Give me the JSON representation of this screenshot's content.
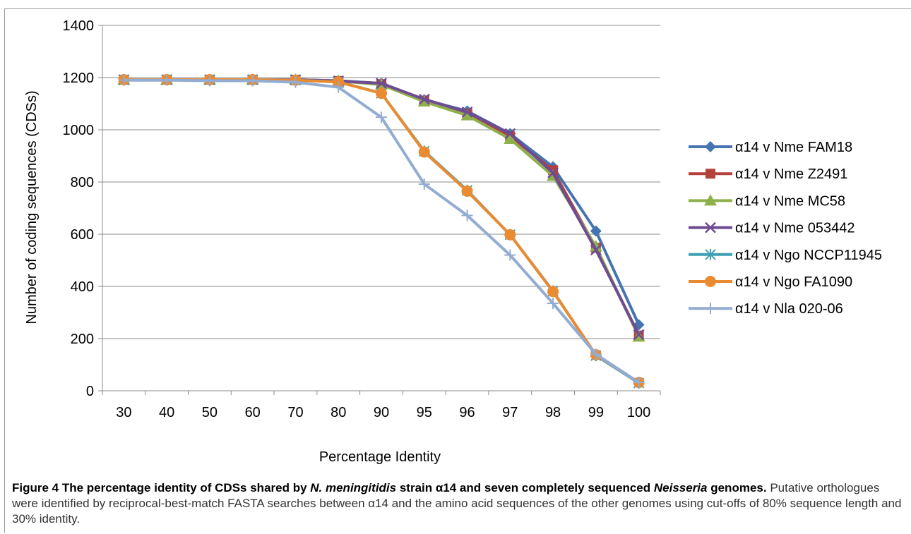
{
  "chart_data": {
    "type": "line",
    "title": "",
    "xlabel": "Percentage Identity",
    "ylabel": "Number of coding sequences (CDSs)",
    "ylim": [
      0,
      1400
    ],
    "yticks": [
      "0",
      "200",
      "400",
      "600",
      "800",
      "1000",
      "1200",
      "1400"
    ],
    "categories": [
      "30",
      "40",
      "50",
      "60",
      "70",
      "80",
      "90",
      "95",
      "96",
      "97",
      "98",
      "99",
      "100"
    ],
    "grid": "horizontal",
    "legend_position": "right",
    "series": [
      {
        "name": "α14 v Nme FAM18",
        "color": "#4674b0",
        "marker": "diamond",
        "values": [
          1192,
          1192,
          1192,
          1192,
          1192,
          1188,
          1178,
          1115,
          1072,
          985,
          858,
          612,
          253
        ]
      },
      {
        "name": "α14 v Nme Z2491",
        "color": "#b5413d",
        "marker": "square",
        "values": [
          1192,
          1192,
          1192,
          1192,
          1192,
          1187,
          1175,
          1112,
          1062,
          975,
          845,
          548,
          212
        ]
      },
      {
        "name": "α14 v Nme MC58",
        "color": "#8eb04a",
        "marker": "triangle",
        "values": [
          1192,
          1192,
          1192,
          1192,
          1192,
          1187,
          1173,
          1108,
          1055,
          965,
          823,
          553,
          207
        ]
      },
      {
        "name": "α14 v Nme 053442",
        "color": "#6e4b93",
        "marker": "x",
        "values": [
          1192,
          1192,
          1192,
          1192,
          1192,
          1187,
          1178,
          1117,
          1068,
          985,
          835,
          540,
          215
        ]
      },
      {
        "name": "α14 v Ngo NCCP11945",
        "color": "#3ea0b4",
        "marker": "asterisk",
        "values": [
          1192,
          1192,
          1192,
          1192,
          1190,
          1184,
          1140,
          918,
          768,
          598,
          382,
          135,
          30
        ]
      },
      {
        "name": "α14 v Ngo FA1090",
        "color": "#ea8b32",
        "marker": "circle",
        "values": [
          1192,
          1192,
          1192,
          1192,
          1190,
          1183,
          1140,
          915,
          765,
          598,
          380,
          138,
          32
        ]
      },
      {
        "name": "α14 v Nla 020-06",
        "color": "#93acd2",
        "marker": "plus",
        "values": [
          1190,
          1190,
          1188,
          1188,
          1182,
          1163,
          1048,
          792,
          672,
          520,
          335,
          140,
          32
        ]
      }
    ]
  },
  "caption": {
    "title_parts": [
      {
        "text": "Figure 4 The percentage identity of CDSs shared by ",
        "italic": false
      },
      {
        "text": "N. meningitidis",
        "italic": true
      },
      {
        "text": " strain α14 and seven completely sequenced ",
        "italic": false
      },
      {
        "text": "Neisseria",
        "italic": true
      },
      {
        "text": " genomes",
        "italic": false
      },
      {
        "text": ".",
        "italic": false
      }
    ],
    "body": "Putative orthologues were identified by reciprocal-best-match FASTA searches between α14 and the amino acid sequences of the other genomes using cut-offs of 80% sequence length and 30% identity."
  }
}
